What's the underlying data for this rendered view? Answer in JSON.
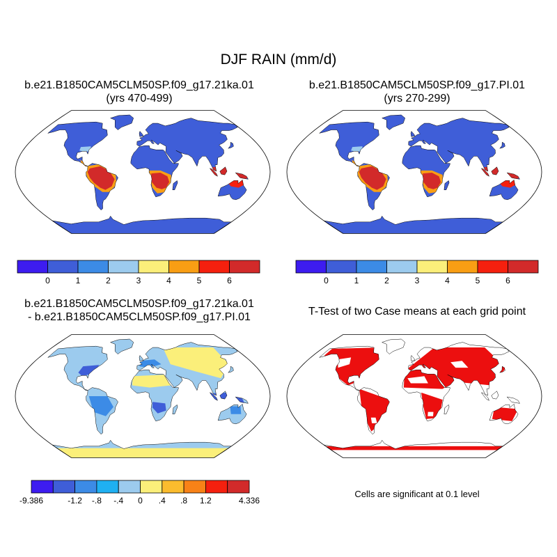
{
  "title": "DJF RAIN (mm/d)",
  "panels": [
    {
      "id": "case1",
      "title_lines": [
        "b.e21.B1850CAM5CLM50SP.f09_g17.21ka.01",
        "(yrs 470-499)"
      ]
    },
    {
      "id": "case2",
      "title_lines": [
        "b.e21.B1850CAM5CLM50SP.f09_g17.PI.01",
        "(yrs 270-299)"
      ]
    },
    {
      "id": "difference",
      "title_lines": [
        "b.e21.B1850CAM5CLM50SP.f09_g17.21ka.01",
        "- b.e21.B1850CAM5CLM50SP.f09_g17.PI.01"
      ]
    },
    {
      "id": "ttest",
      "title_lines": [
        "T-Test of two Case means at each grid point"
      ]
    }
  ],
  "colorbars": {
    "abs": {
      "colors": [
        "#3d1cf0",
        "#3f5ed8",
        "#3c8be6",
        "#9ccbee",
        "#fbef7a",
        "#f99e14",
        "#f5200e",
        "#d22a2a"
      ],
      "labels": [
        "0",
        "1",
        "2",
        "3",
        "4",
        "5",
        "6"
      ]
    },
    "diff": {
      "colors": [
        "#3d1cf0",
        "#3f5ed8",
        "#3c8be6",
        "#1fb0f2",
        "#9ccbee",
        "#fbef7a",
        "#fbbc2e",
        "#f88217",
        "#f5200e",
        "#d22a2a"
      ],
      "labels": [
        "-9.386",
        "-1.2",
        "-.8",
        "-.4",
        "0",
        ".4",
        ".8",
        "1.2",
        "4.336"
      ]
    }
  },
  "note": "Cells are significant at 0.1 level",
  "colors": {
    "ocean": "#ffffff",
    "significant": "#ec0f0f",
    "coast": "#000000"
  }
}
